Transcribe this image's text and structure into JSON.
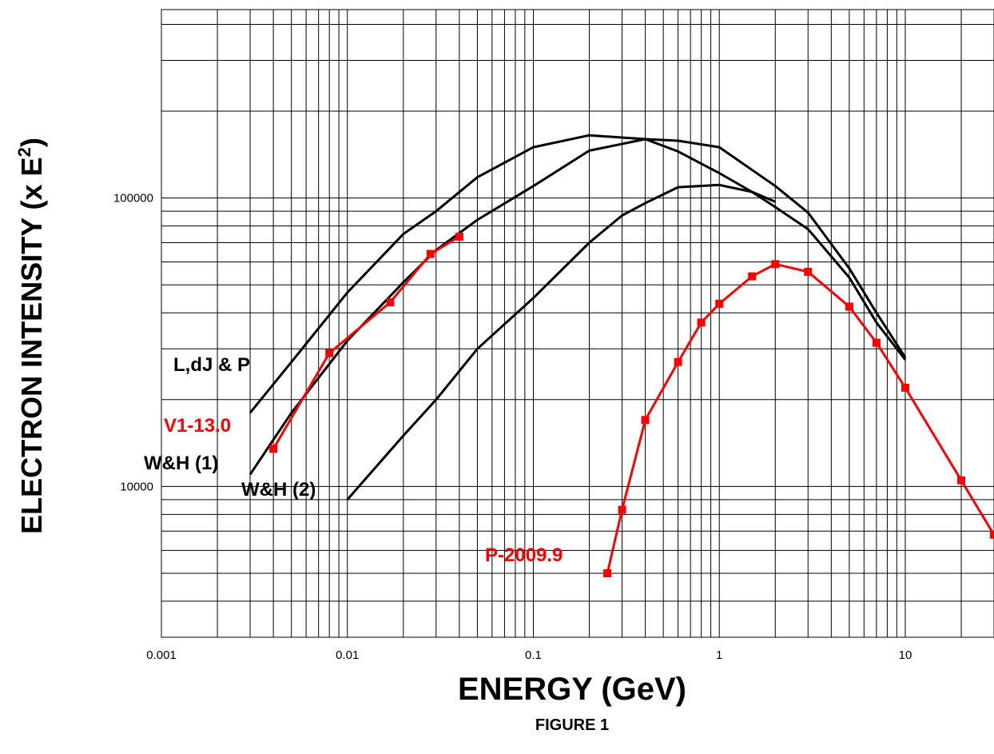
{
  "chart_data": {
    "type": "line",
    "xscale": "log",
    "yscale": "log",
    "xlabel": "ENERGY (GeV)",
    "ylabel": "ELECTRON INTENSITY (x E",
    "ylabel_superscript": "2",
    "ylabel_close": ")",
    "caption": "FIGURE 1",
    "xlim": [
      0.001,
      30
    ],
    "ylim": [
      3000,
      450000
    ],
    "x_tick_labels": [
      {
        "value": 0.001,
        "label": "0.001"
      },
      {
        "value": 0.01,
        "label": "0.01"
      },
      {
        "value": 0.1,
        "label": "0.1"
      },
      {
        "value": 1,
        "label": "1"
      },
      {
        "value": 10,
        "label": "10"
      }
    ],
    "y_tick_labels": [
      {
        "value": 10000,
        "label": "10000"
      },
      {
        "value": 100000,
        "label": "100000"
      }
    ],
    "grid": true,
    "series": [
      {
        "name": "L,dJ & P",
        "color": "#000000",
        "markers": false,
        "x": [
          0.003,
          0.005,
          0.01,
          0.02,
          0.03,
          0.05,
          0.1,
          0.2,
          0.4,
          0.6,
          1,
          1.5,
          2
        ],
        "y": [
          18000,
          27000,
          47000,
          75000,
          90000,
          118000,
          150000,
          165000,
          160000,
          145000,
          122000,
          105000,
          97000
        ]
      },
      {
        "name": "W&H (1)",
        "color": "#000000",
        "markers": false,
        "x": [
          0.003,
          0.005,
          0.01,
          0.02,
          0.03,
          0.05,
          0.1,
          0.2,
          0.4,
          0.6,
          1,
          2,
          3,
          5,
          7,
          10
        ],
        "y": [
          11000,
          18000,
          32000,
          51000,
          66000,
          84000,
          110000,
          146000,
          160000,
          158000,
          150000,
          110000,
          89000,
          57000,
          40000,
          28000
        ]
      },
      {
        "name": "W&H (2)",
        "color": "#000000",
        "markers": false,
        "x": [
          0.01,
          0.02,
          0.03,
          0.05,
          0.1,
          0.2,
          0.3,
          0.4,
          0.6,
          1,
          1.5,
          2,
          3,
          5,
          7,
          10
        ],
        "y": [
          9000,
          15000,
          20000,
          30000,
          45000,
          70000,
          87000,
          96000,
          109000,
          111000,
          105000,
          93000,
          78000,
          53000,
          37000,
          27500
        ]
      },
      {
        "name": "V1-13.0",
        "color": "#ff0000",
        "markers": true,
        "x": [
          0.004,
          0.008,
          0.017,
          0.028,
          0.04
        ],
        "y": [
          13500,
          29000,
          43500,
          64000,
          73500
        ]
      },
      {
        "name": "P-2009.9",
        "color": "#ff0000",
        "markers": true,
        "x": [
          0.25,
          0.3,
          0.4,
          0.6,
          0.8,
          1,
          1.5,
          2,
          3,
          5,
          7,
          10,
          20,
          30
        ],
        "y": [
          5000,
          8300,
          17000,
          27000,
          37000,
          43000,
          53500,
          59000,
          55500,
          42000,
          31500,
          22000,
          10500,
          6800
        ]
      }
    ]
  }
}
